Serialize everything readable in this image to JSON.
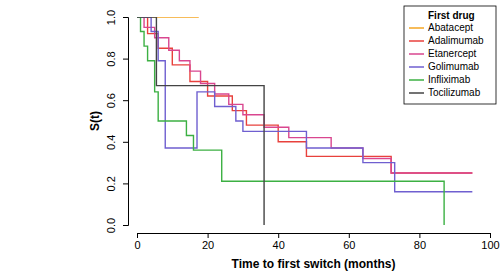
{
  "chart_data": {
    "type": "line",
    "x_label": "Time to first switch (months)",
    "y_label": "S(t)",
    "legend_title": "First drug",
    "legend": "top-right",
    "line_style": "step",
    "xlim": [
      0,
      100
    ],
    "ylim": [
      0,
      1
    ],
    "xticks": [
      0,
      20,
      40,
      60,
      80,
      100
    ],
    "yticks": [
      {
        "value": 0,
        "label": "0.0"
      },
      {
        "value": 0.2,
        "label": "0.2"
      },
      {
        "value": 0.4,
        "label": "0.4"
      },
      {
        "value": 0.6,
        "label": "0.6"
      },
      {
        "value": 0.8,
        "label": "0.8"
      },
      {
        "value": 1,
        "label": "1.0"
      }
    ],
    "series": [
      {
        "name": "Abatacept",
        "color": "#f5a623",
        "x": [
          0,
          17.5
        ],
        "values": [
          1,
          1
        ]
      },
      {
        "name": "Adalimumab",
        "color": "#e8413c",
        "x": [
          0,
          3,
          6,
          10,
          15,
          20,
          27,
          31,
          40,
          48,
          72,
          95
        ],
        "values": [
          1,
          0.92,
          0.85,
          0.77,
          0.69,
          0.62,
          0.55,
          0.48,
          0.4,
          0.33,
          0.25,
          0.25
        ]
      },
      {
        "name": "Etanercept",
        "color": "#d9468f",
        "x": [
          0,
          2,
          5,
          9,
          12,
          15,
          18,
          22,
          26,
          30,
          36,
          43,
          55,
          64,
          72,
          95
        ],
        "values": [
          1,
          0.95,
          0.9,
          0.84,
          0.79,
          0.74,
          0.68,
          0.63,
          0.58,
          0.53,
          0.47,
          0.42,
          0.37,
          0.32,
          0.25,
          0.25
        ]
      },
      {
        "name": "Golimumab",
        "color": "#6f5fd0",
        "x": [
          0,
          4,
          6,
          8,
          17,
          22,
          28,
          30,
          48,
          64,
          73,
          95
        ],
        "values": [
          1,
          0.93,
          0.79,
          0.37,
          0.64,
          0.57,
          0.5,
          0.45,
          0.37,
          0.3,
          0.16,
          0.16
        ]
      },
      {
        "name": "Infliximab",
        "color": "#3cb043",
        "x": [
          0,
          1,
          2,
          3,
          5,
          6,
          14,
          16,
          24,
          87
        ],
        "values": [
          1,
          0.93,
          0.86,
          0.79,
          0.64,
          0.5,
          0.43,
          0.36,
          0.21,
          0
        ]
      },
      {
        "name": "Tocilizumab",
        "color": "#444444",
        "x": [
          0,
          5.5,
          36
        ],
        "values": [
          1,
          0.67,
          0
        ]
      }
    ]
  }
}
